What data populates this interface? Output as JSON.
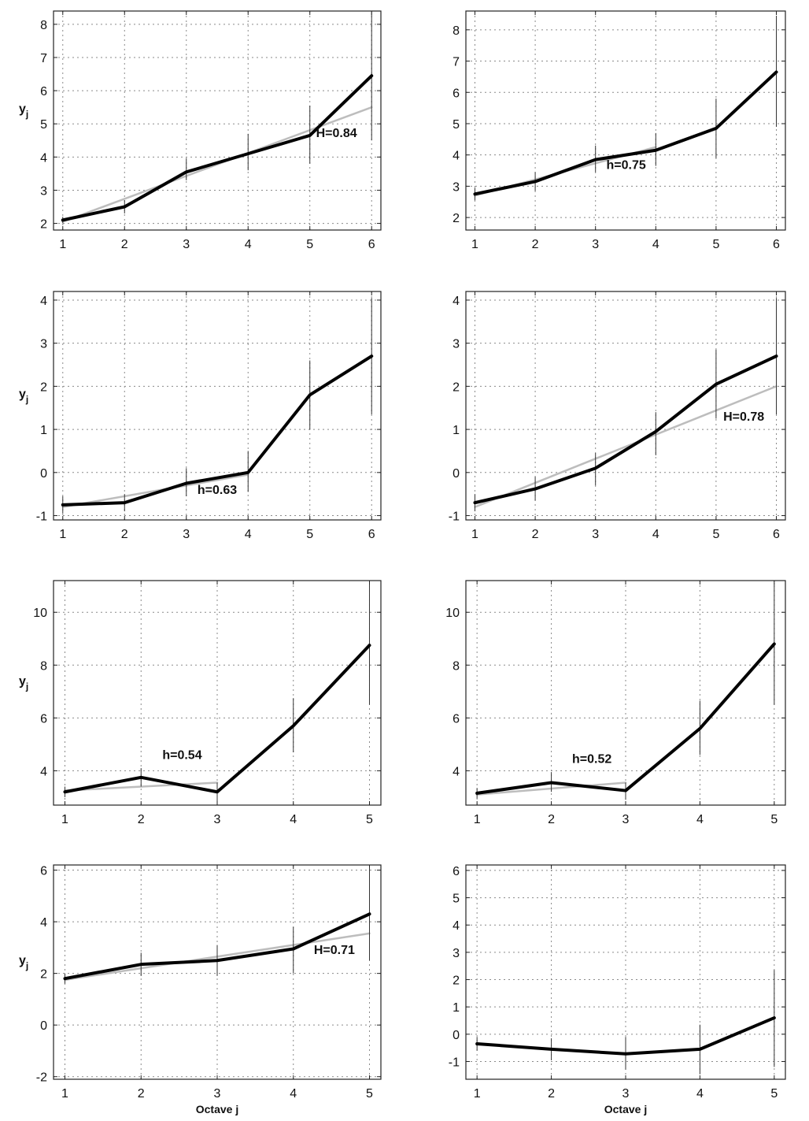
{
  "chart_data": [
    {
      "type": "line",
      "x": [
        1,
        2,
        3,
        4,
        5,
        6
      ],
      "xlim": [
        0.85,
        6.15
      ],
      "ylim": [
        1.8,
        8.4
      ],
      "yticks": [
        2,
        3,
        4,
        5,
        6,
        7,
        8
      ],
      "ylabel": "y",
      "ylabel_sub": "j",
      "xlabel": "",
      "grid": true,
      "series": [
        {
          "values": [
            2.1,
            2.5,
            3.55,
            4.1,
            4.65,
            6.45
          ],
          "lower": [
            2.0,
            2.3,
            3.3,
            3.6,
            3.8,
            4.5
          ],
          "upper": [
            2.2,
            2.7,
            3.95,
            4.7,
            5.55,
            8.35
          ]
        }
      ],
      "fit": {
        "x": [
          1,
          6
        ],
        "y": [
          2.05,
          5.5
        ]
      },
      "annotation": {
        "text": "H=0.84",
        "x": 5.1,
        "y": 4.6
      }
    },
    {
      "type": "line",
      "x": [
        1,
        2,
        3,
        4,
        5,
        6
      ],
      "xlim": [
        0.85,
        6.15
      ],
      "ylim": [
        1.6,
        8.6
      ],
      "yticks": [
        2,
        3,
        4,
        5,
        6,
        7,
        8
      ],
      "ylabel": "",
      "xlabel": "",
      "grid": true,
      "series": [
        {
          "values": [
            2.75,
            3.15,
            3.85,
            4.15,
            4.85,
            6.65
          ],
          "lower": [
            2.55,
            2.85,
            3.45,
            3.65,
            3.9,
            4.9
          ],
          "upper": [
            2.95,
            3.45,
            4.3,
            4.7,
            5.8,
            8.45
          ]
        }
      ],
      "fit": {
        "x": [
          1,
          4
        ],
        "y": [
          2.7,
          4.25
        ]
      },
      "annotation": {
        "text": "h=0.75",
        "x": 3.18,
        "y": 3.55
      }
    },
    {
      "type": "line",
      "x": [
        1,
        2,
        3,
        4,
        5,
        6
      ],
      "xlim": [
        0.85,
        6.15
      ],
      "ylim": [
        -1.1,
        4.2
      ],
      "yticks": [
        -1,
        0,
        1,
        2,
        3,
        4
      ],
      "ylabel": "y",
      "ylabel_sub": "j",
      "xlabel": "",
      "grid": true,
      "series": [
        {
          "values": [
            -0.75,
            -0.7,
            -0.25,
            0.0,
            1.8,
            2.7
          ],
          "lower": [
            -0.95,
            -0.9,
            -0.55,
            -0.45,
            1.0,
            1.35
          ],
          "upper": [
            -0.55,
            -0.5,
            0.1,
            0.5,
            2.6,
            4.05
          ]
        }
      ],
      "fit": {
        "x": [
          1,
          4
        ],
        "y": [
          -0.8,
          -0.05
        ]
      },
      "annotation": {
        "text": "h=0.63",
        "x": 3.18,
        "y": -0.5
      }
    },
    {
      "type": "line",
      "x": [
        1,
        2,
        3,
        4,
        5,
        6
      ],
      "xlim": [
        0.85,
        6.15
      ],
      "ylim": [
        -1.1,
        4.2
      ],
      "yticks": [
        -1,
        0,
        1,
        2,
        3,
        4
      ],
      "ylabel": "",
      "xlabel": "",
      "grid": true,
      "series": [
        {
          "values": [
            -0.7,
            -0.38,
            0.1,
            0.95,
            2.05,
            2.7
          ],
          "lower": [
            -0.9,
            -0.65,
            -0.3,
            0.4,
            1.25,
            1.35
          ],
          "upper": [
            -0.5,
            -0.1,
            0.45,
            1.4,
            2.85,
            4.05
          ]
        }
      ],
      "fit": {
        "x": [
          1,
          6
        ],
        "y": [
          -0.8,
          2.0
        ]
      },
      "annotation": {
        "text": "H=0.78",
        "x": 5.12,
        "y": 1.2
      }
    },
    {
      "type": "line",
      "x": [
        1,
        2,
        3,
        4,
        5
      ],
      "xlim": [
        0.85,
        5.15
      ],
      "ylim": [
        2.7,
        11.2
      ],
      "yticks": [
        4,
        6,
        8,
        10
      ],
      "ylabel": "y",
      "ylabel_sub": "j",
      "xlabel": "",
      "grid": true,
      "series": [
        {
          "values": [
            3.2,
            3.75,
            3.2,
            5.7,
            8.75
          ],
          "lower": [
            3.0,
            3.4,
            2.85,
            4.7,
            6.5
          ],
          "upper": [
            3.4,
            4.1,
            3.55,
            6.75,
            11.05
          ]
        }
      ],
      "fit": {
        "x": [
          1,
          3
        ],
        "y": [
          3.25,
          3.55
        ]
      },
      "annotation": {
        "text": "h=0.54",
        "x": 2.28,
        "y": 4.45
      }
    },
    {
      "type": "line",
      "x": [
        1,
        2,
        3,
        4,
        5
      ],
      "xlim": [
        0.85,
        5.15
      ],
      "ylim": [
        2.7,
        11.2
      ],
      "yticks": [
        4,
        6,
        8,
        10
      ],
      "ylabel": "",
      "xlabel": "",
      "grid": true,
      "series": [
        {
          "values": [
            3.15,
            3.55,
            3.25,
            5.6,
            8.8
          ],
          "lower": [
            2.95,
            3.2,
            2.9,
            4.6,
            6.5
          ],
          "upper": [
            3.35,
            3.95,
            3.55,
            6.65,
            11.1
          ]
        }
      ],
      "fit": {
        "x": [
          1,
          3
        ],
        "y": [
          3.1,
          3.55
        ]
      },
      "annotation": {
        "text": "h=0.52",
        "x": 2.28,
        "y": 4.3
      }
    },
    {
      "type": "line",
      "x": [
        1,
        2,
        3,
        4,
        5
      ],
      "xlim": [
        0.85,
        5.15
      ],
      "ylim": [
        -2.1,
        6.2
      ],
      "yticks": [
        -2,
        0,
        2,
        4,
        6
      ],
      "ylabel": "y",
      "ylabel_sub": "j",
      "xlabel": "Octave j",
      "grid": true,
      "series": [
        {
          "values": [
            1.8,
            2.35,
            2.5,
            2.95,
            4.3
          ],
          "lower": [
            1.6,
            1.9,
            1.9,
            2.0,
            2.5
          ],
          "upper": [
            2.0,
            2.8,
            3.1,
            3.8,
            6.1
          ]
        }
      ],
      "fit": {
        "x": [
          1,
          5
        ],
        "y": [
          1.75,
          3.55
        ]
      },
      "annotation": {
        "text": "H=0.71",
        "x": 4.27,
        "y": 2.75
      }
    },
    {
      "type": "line",
      "x": [
        1,
        2,
        3,
        4,
        5
      ],
      "xlim": [
        0.85,
        5.15
      ],
      "ylim": [
        -1.65,
        6.2
      ],
      "yticks": [
        -1,
        0,
        1,
        2,
        3,
        4,
        5,
        6
      ],
      "ylabel": "",
      "xlabel": "Octave j",
      "grid": true,
      "series": [
        {
          "values": [
            -0.35,
            -0.55,
            -0.72,
            -0.55,
            0.6
          ],
          "lower": [
            -0.6,
            -0.95,
            -1.3,
            -1.45,
            -1.2
          ],
          "upper": [
            -0.1,
            -0.15,
            -0.1,
            0.35,
            2.35
          ]
        }
      ],
      "fit": null,
      "annotation": null
    }
  ]
}
